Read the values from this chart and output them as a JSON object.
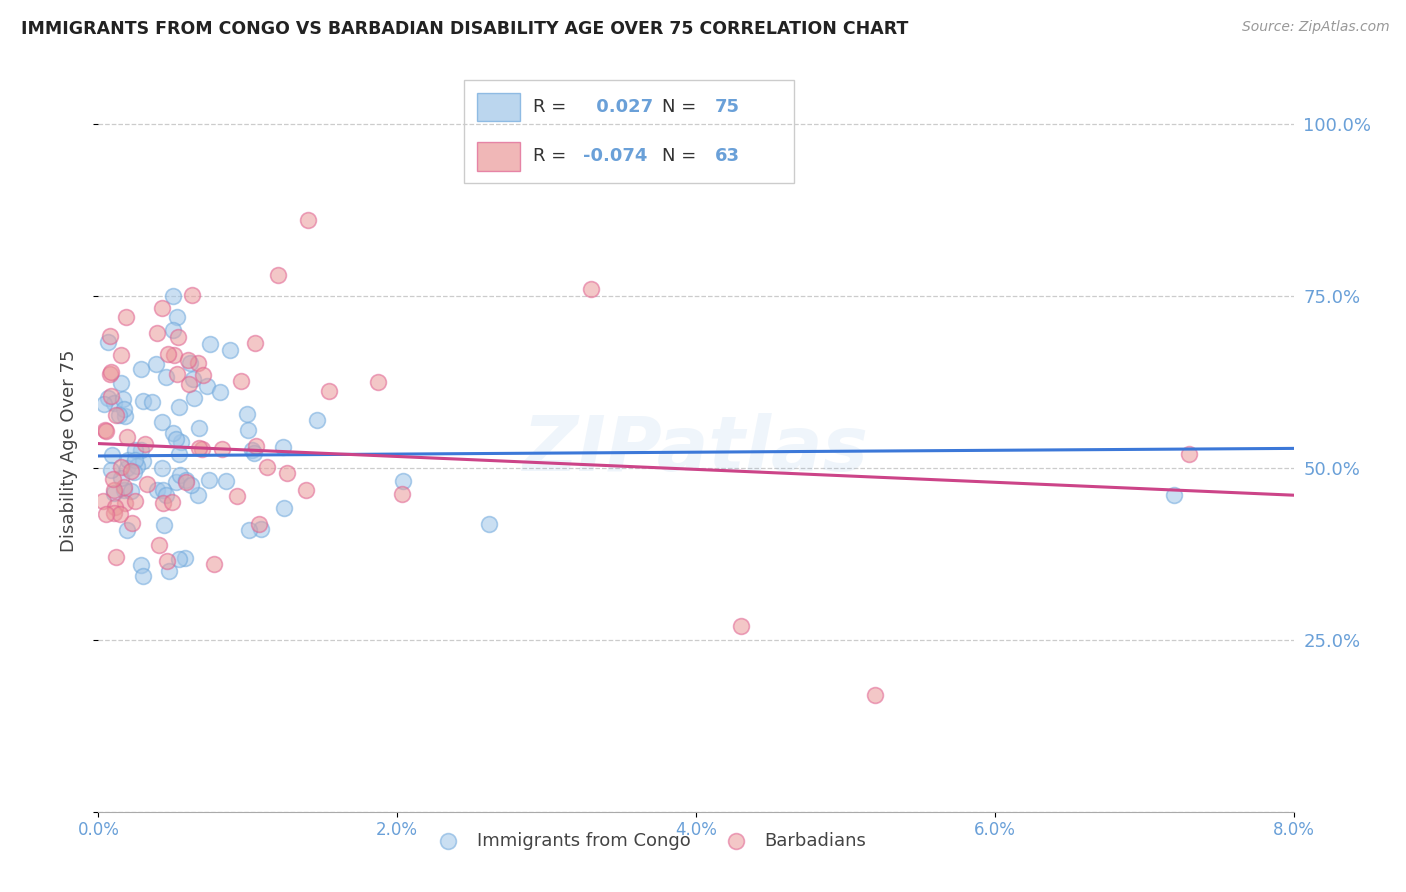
{
  "title": "IMMIGRANTS FROM CONGO VS BARBADIAN DISABILITY AGE OVER 75 CORRELATION CHART",
  "source": "Source: ZipAtlas.com",
  "ylabel": "Disability Age Over 75",
  "legend_label1": "Immigrants from Congo",
  "legend_label2": "Barbadians",
  "R1": "0.027",
  "N1": "75",
  "R2": "-0.074",
  "N2": "63",
  "color_blue": "#9fc5e8",
  "color_pink": "#ea9999",
  "color_edge_blue": "#6fa8dc",
  "color_edge_pink": "#e06090",
  "color_line_blue": "#3c78d8",
  "color_line_pink": "#cc4488",
  "color_axis": "#6aa0d8",
  "color_grid": "#cccccc",
  "watermark": "ZIPatlas",
  "xmin": 0.0,
  "xmax": 0.08,
  "ymin": 0.0,
  "ymax": 1.0,
  "blue_line_y0": 0.517,
  "blue_line_y1": 0.528,
  "pink_line_y0": 0.535,
  "pink_line_y1": 0.46
}
